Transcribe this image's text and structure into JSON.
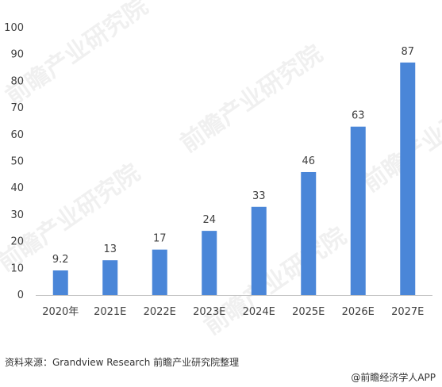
{
  "chart_data": {
    "type": "bar",
    "categories": [
      "2020年",
      "2021E",
      "2022E",
      "2023E",
      "2024E",
      "2025E",
      "2026E",
      "2027E"
    ],
    "values": [
      9.2,
      13,
      17,
      24,
      33,
      46,
      63,
      87
    ],
    "value_labels": [
      "9.2",
      "13",
      "17",
      "24",
      "33",
      "46",
      "63",
      "87"
    ],
    "yticks": [
      0,
      10,
      20,
      30,
      40,
      50,
      60,
      70,
      80,
      90,
      100
    ],
    "ylim": [
      0,
      100
    ],
    "title": "",
    "xlabel": "",
    "ylabel": "",
    "grid": false,
    "bar_color": "#4a86d8"
  },
  "footer": {
    "source": "资料来源：Grandview Research 前瞻产业研究院整理",
    "credit": "@前瞻经济学人APP"
  },
  "watermark": {
    "text": "前瞻产业研究院"
  }
}
